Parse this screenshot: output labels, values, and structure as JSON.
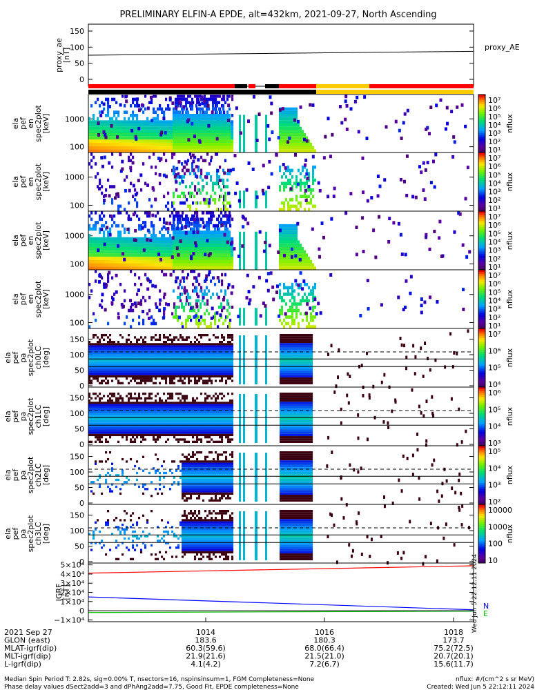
{
  "title": "PRELIMINARY ELFIN-A EPDE, alt=432km, 2021-09-27, North Ascending",
  "panels": [
    {
      "ylabel": [
        "proxy_ae",
        "[nT]"
      ],
      "side_label": "proxy_AE",
      "ticks": [
        "150",
        "100",
        "50",
        "0"
      ]
    },
    {
      "ylabel": [
        "ela",
        "pef",
        "en",
        "spec2plot",
        "[keV]"
      ],
      "ticks": [
        "1000",
        "100"
      ],
      "cbar_label": "nflux",
      "cbar_ticks": [
        "10⁷",
        "10⁶",
        "10⁵",
        "10⁴",
        "10³",
        "10²",
        "10¹"
      ]
    },
    {
      "ylabel": [
        "ela",
        "pef",
        "en",
        "spec2plot",
        "[keV]"
      ],
      "ticks": [
        "1000",
        "100"
      ],
      "cbar_label": "nflux",
      "cbar_ticks": [
        "10⁷",
        "10⁶",
        "10⁵",
        "10⁴",
        "10³",
        "10²",
        "10¹"
      ]
    },
    {
      "ylabel": [
        "ela",
        "pef",
        "en",
        "spec2plot",
        "[keV]"
      ],
      "ticks": [
        "1000",
        "100"
      ],
      "cbar_label": "nflux",
      "cbar_ticks": [
        "10⁷",
        "10⁶",
        "10⁵",
        "10⁴",
        "10³",
        "10²",
        "10¹"
      ]
    },
    {
      "ylabel": [
        "ela",
        "pef",
        "en",
        "spec2plot",
        "[keV]"
      ],
      "ticks": [
        "1000",
        "100"
      ],
      "cbar_label": "nflux",
      "cbar_ticks": [
        "10⁷",
        "10⁶",
        "10⁵",
        "10⁴",
        "10³",
        "10²",
        "10¹"
      ]
    },
    {
      "ylabel": [
        "ela",
        "pef",
        "pa",
        "spec2plot",
        "ch0LC",
        "[deg]"
      ],
      "ticks": [
        "150",
        "100",
        "50",
        "0"
      ],
      "cbar_label": "nflux",
      "cbar_ticks": [
        "10⁷",
        "10⁶",
        "10⁵",
        "10⁴"
      ]
    },
    {
      "ylabel": [
        "ela",
        "pef",
        "pa",
        "spec2plot",
        "ch1LC",
        "[deg]"
      ],
      "ticks": [
        "150",
        "100",
        "50",
        "0"
      ],
      "cbar_label": "nflux",
      "cbar_ticks": [
        "10⁶",
        "10⁵",
        "10⁴",
        "10³"
      ]
    },
    {
      "ylabel": [
        "ela",
        "pef",
        "pa",
        "spec2plot",
        "ch2LC",
        "[deg]"
      ],
      "ticks": [
        "150",
        "100",
        "50",
        "0"
      ],
      "cbar_label": "nflux",
      "cbar_ticks": [
        "10⁵",
        "10⁴",
        "10³",
        "10²"
      ]
    },
    {
      "ylabel": [
        "ela",
        "pef",
        "pa",
        "spec2plot",
        "ch3LC",
        "[deg]"
      ],
      "ticks": [
        "150",
        "100",
        "50",
        "0"
      ],
      "cbar_label": "nflux",
      "cbar_ticks": [
        "10000",
        "1000",
        "100",
        "10"
      ]
    },
    {
      "ylabel": [
        "IGRF",
        "[nT]"
      ],
      "ticks": [
        "5×10⁴",
        "4×10⁴",
        "3×10⁴",
        "2×10⁴",
        "1×10⁴",
        "0",
        "−1×10⁴"
      ],
      "legend": [
        "N",
        "E"
      ]
    }
  ],
  "side_stamp": "Wed Jun  5 22:12:11 2024",
  "xaxis": {
    "rows": [
      {
        "label": "2021 Sep 27",
        "values": [
          "1014",
          "1016",
          "1018"
        ]
      },
      {
        "label": "GLON (east)",
        "values": [
          "183.6",
          "180.3",
          "173.7"
        ]
      },
      {
        "label": "MLAT-igrf(dip)",
        "values": [
          "60.3(59.6)",
          "68.0(66.4)",
          "75.2(72.5)"
        ]
      },
      {
        "label": "MLT-igrf(dip)",
        "values": [
          "21.9(21.6)",
          "21.5(21.0)",
          "20.7(20.1)"
        ]
      },
      {
        "label": "L-igrf(dip)",
        "values": [
          "4.1(4.2)",
          "7.2(6.7)",
          "15.6(11.7)"
        ]
      }
    ]
  },
  "footer": {
    "left1": "Median Spin Period T: 2.82s, sig=0.00% T, nsectors=16, nspinsinsum=1, FGM Completeness=None",
    "left2": "Phase delay values dSect2add=3 and dPhAng2add=7.75, Good Fit, EPDE completeness=None",
    "right1": "nflux: #/(cm^2 s sr MeV)",
    "right2": "Created: Wed Jun  5 22:12:11 2024"
  },
  "chart_data": {
    "type": "heatmap",
    "title": "PRELIMINARY ELFIN-A EPDE, alt=432km, 2021-09-27, North Ascending",
    "x_ticks": [
      "1014",
      "1016",
      "1018"
    ],
    "proxy_ae": {
      "ylim": [
        0,
        150
      ],
      "value_start": 75,
      "value_end": 87
    },
    "status_bar": [
      "red",
      "black",
      "red",
      "gap",
      "red",
      "black",
      "red",
      "yellow",
      "red"
    ],
    "igrf": {
      "ylim": [
        -10000,
        50000
      ],
      "series": [
        {
          "name": "N",
          "color": "#0000ff",
          "value_start": 15000,
          "value_end": 1000
        },
        {
          "name": "E",
          "color": "#00c000",
          "value_start": -2000,
          "value_end": -500
        },
        {
          "name": "",
          "color": "#ff0000",
          "value_start": 41000,
          "value_end": 49000
        }
      ]
    }
  }
}
